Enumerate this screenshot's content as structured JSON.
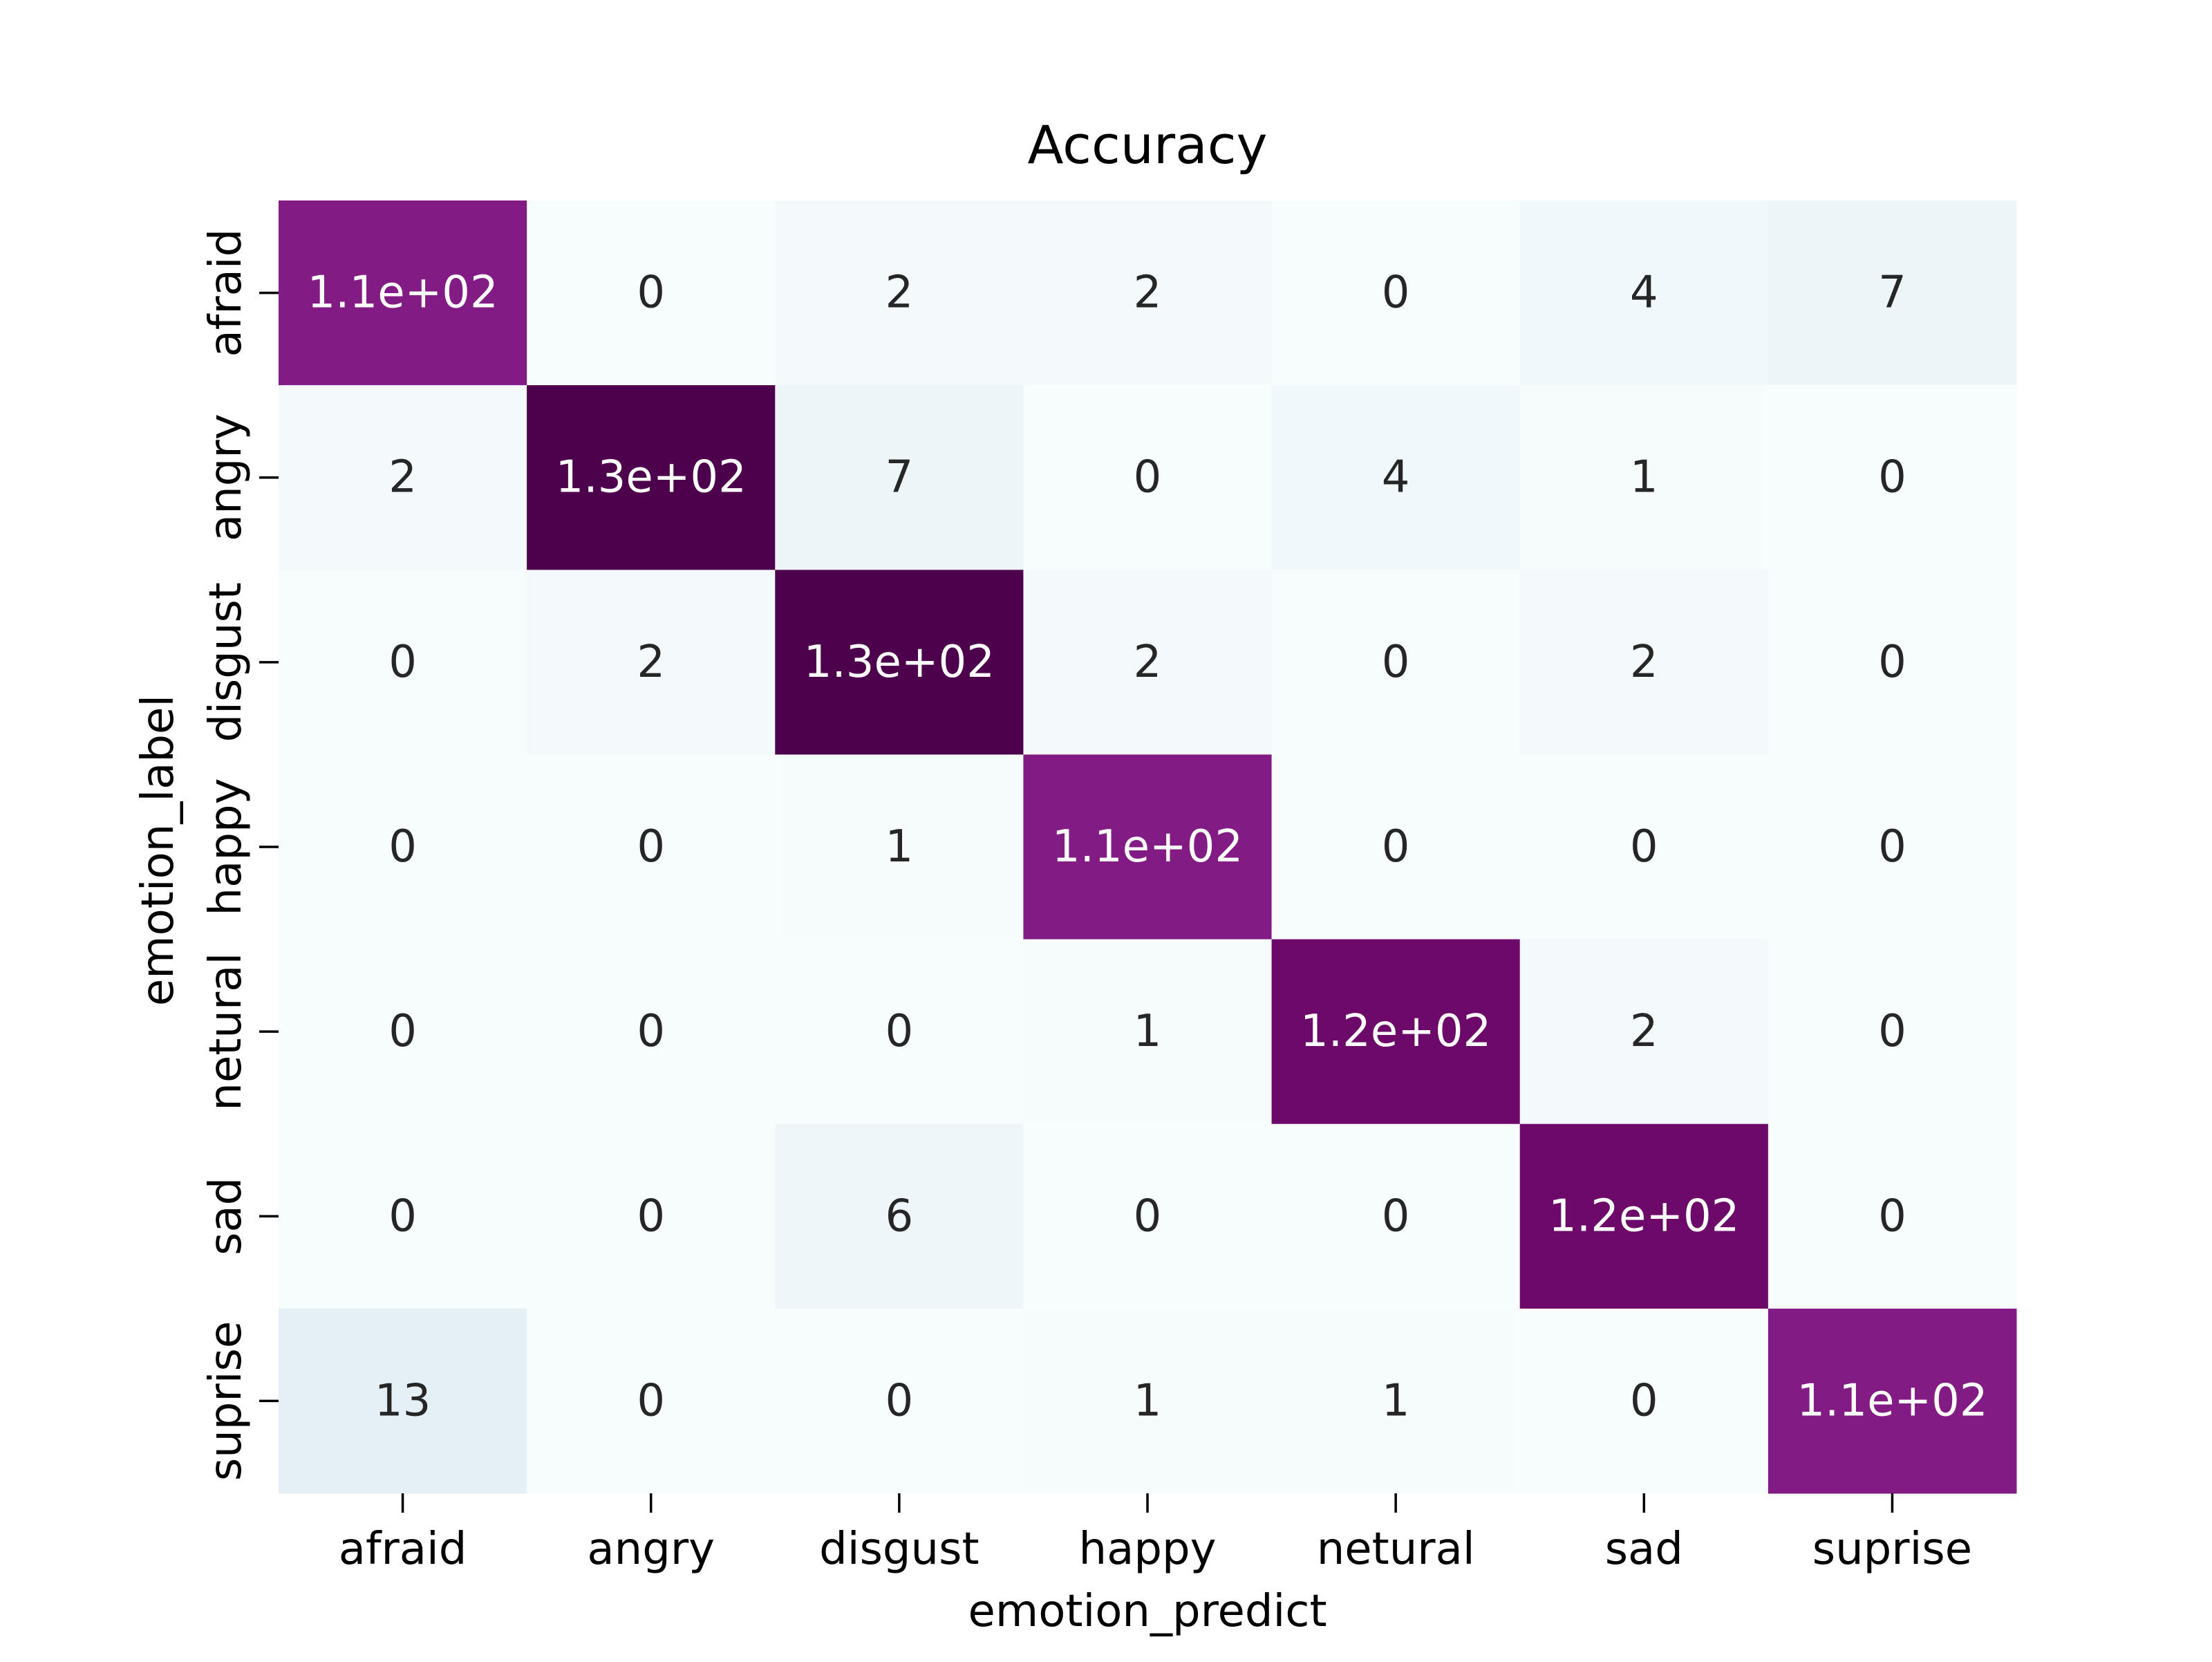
{
  "chart_data": {
    "type": "heatmap",
    "title": "Accuracy",
    "xlabel": "emotion_predict",
    "ylabel": "emotion_label",
    "x_categories": [
      "afraid",
      "angry",
      "disgust",
      "happy",
      "netural",
      "sad",
      "suprise"
    ],
    "y_categories": [
      "afraid",
      "angry",
      "disgust",
      "happy",
      "netural",
      "sad",
      "suprise"
    ],
    "values": [
      [
        110,
        0,
        2,
        2,
        0,
        4,
        7
      ],
      [
        2,
        130,
        7,
        0,
        4,
        1,
        0
      ],
      [
        0,
        2,
        130,
        2,
        0,
        2,
        0
      ],
      [
        0,
        0,
        1,
        110,
        0,
        0,
        0
      ],
      [
        0,
        0,
        0,
        1,
        120,
        2,
        0
      ],
      [
        0,
        0,
        6,
        0,
        0,
        120,
        0
      ],
      [
        13,
        0,
        0,
        1,
        1,
        0,
        110
      ]
    ],
    "annotations": [
      [
        "1.1e+02",
        "0",
        "2",
        "2",
        "0",
        "4",
        "7"
      ],
      [
        "2",
        "1.3e+02",
        "7",
        "0",
        "4",
        "1",
        "0"
      ],
      [
        "0",
        "2",
        "1.3e+02",
        "2",
        "0",
        "2",
        "0"
      ],
      [
        "0",
        "0",
        "1",
        "1.1e+02",
        "0",
        "0",
        "0"
      ],
      [
        "0",
        "0",
        "0",
        "1",
        "1.2e+02",
        "2",
        "0"
      ],
      [
        "0",
        "0",
        "6",
        "0",
        "0",
        "1.2e+02",
        "0"
      ],
      [
        "13",
        "0",
        "0",
        "1",
        "1",
        "0",
        "1.1e+02"
      ]
    ],
    "colormap": "BuPu",
    "colorbar": false,
    "grid": false
  }
}
